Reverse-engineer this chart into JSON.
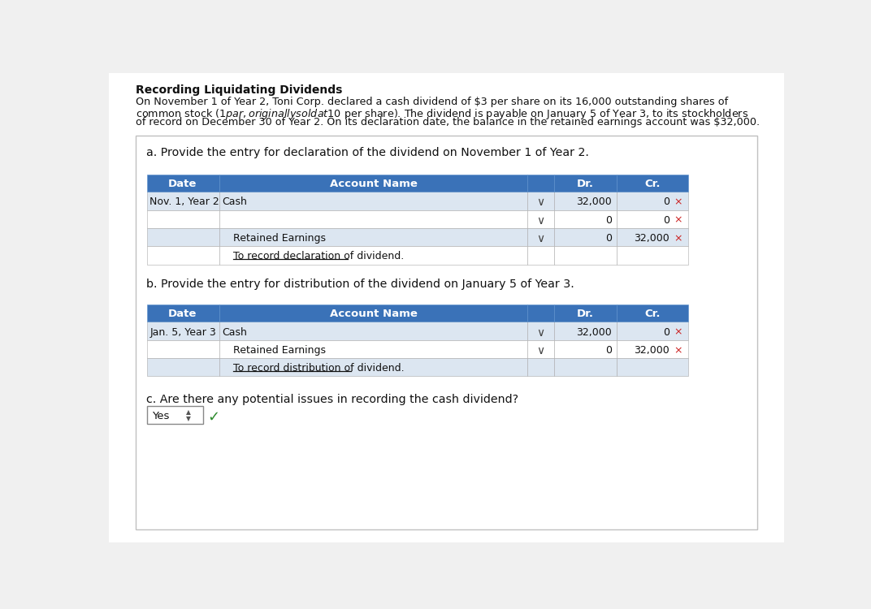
{
  "title": "Recording Liquidating Dividends",
  "desc_line1": "On November 1 of Year 2, Toni Corp. declared a cash dividend of $3 per share on its 16,000 outstanding shares of",
  "desc_line2": "common stock ($1 par, originally sold at $10 per share). The dividend is payable on January 5 of Year 3, to its stockholders",
  "desc_line3": "of record on December 30 of Year 2. On its declaration date, the balance in the retained earnings account was $32,000.",
  "page_bg": "#f0f0f0",
  "content_bg": "#ffffff",
  "section_a_label": "a. Provide the entry for declaration of the dividend on November 1 of Year 2.",
  "section_b_label": "b. Provide the entry for distribution of the dividend on January 5 of Year 3.",
  "section_c_label": "c. Are there any potential issues in recording the cash dividend?",
  "section_c_answer": "Yes",
  "table_header_bg": "#3a72b8",
  "table_header_color": "#ffffff",
  "table_row_alt_bg": "#dce6f1",
  "table_row_bg": "#ffffff",
  "table_a_rows": [
    {
      "date": "Nov. 1, Year 2",
      "account": "Cash",
      "indent": false,
      "dr": "32,000",
      "cr": "0",
      "has_chevron": true,
      "cr_x": true,
      "underline": false
    },
    {
      "date": "",
      "account": "",
      "indent": false,
      "dr": "0",
      "cr": "0",
      "has_chevron": true,
      "cr_x": true,
      "underline": false
    },
    {
      "date": "",
      "account": "Retained Earnings",
      "indent": true,
      "dr": "0",
      "cr": "32,000",
      "has_chevron": true,
      "cr_x": true,
      "underline": false
    },
    {
      "date": "",
      "account": "To record declaration of dividend.",
      "indent": true,
      "dr": "",
      "cr": "",
      "has_chevron": false,
      "cr_x": false,
      "underline": true
    }
  ],
  "table_b_rows": [
    {
      "date": "Jan. 5, Year 3",
      "account": "Cash",
      "indent": false,
      "dr": "32,000",
      "cr": "0",
      "has_chevron": true,
      "cr_x": true,
      "underline": false
    },
    {
      "date": "",
      "account": "Retained Earnings",
      "indent": true,
      "dr": "0",
      "cr": "32,000",
      "has_chevron": true,
      "cr_x": true,
      "underline": false
    },
    {
      "date": "",
      "account": "To record distribution of dividend.",
      "indent": true,
      "dr": "",
      "cr": "",
      "has_chevron": false,
      "cr_x": false,
      "underline": true
    }
  ]
}
